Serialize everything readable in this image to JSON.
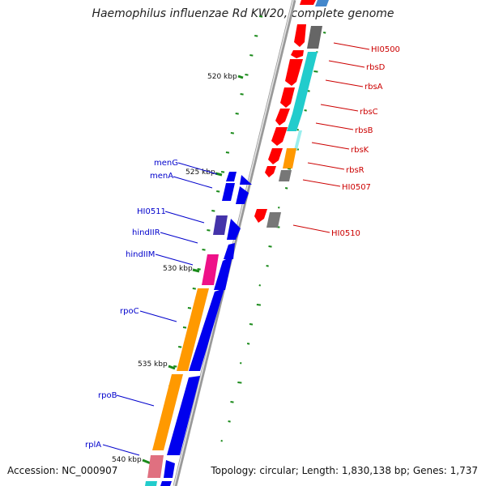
{
  "title": "Haemophilus influenzae Rd KW20, complete genome",
  "footer": {
    "accession": "Accession: NC_000907",
    "summary": "Topology: circular; Length: 1,830,138 bp; Genes: 1,737"
  },
  "ruler": {
    "ticks": [
      {
        "label": "520 kbp"
      },
      {
        "label": "525 kbp"
      },
      {
        "label": "530 kbp"
      },
      {
        "label": "535 kbp"
      },
      {
        "label": "540 kbp"
      }
    ]
  },
  "genes_right": [
    {
      "label": "HI0500"
    },
    {
      "label": "rbsD"
    },
    {
      "label": "rbsA"
    },
    {
      "label": "rbsC"
    },
    {
      "label": "rbsB"
    },
    {
      "label": "rbsK"
    },
    {
      "label": "rbsR"
    },
    {
      "label": "HI0507"
    },
    {
      "label": "HI0510"
    }
  ],
  "genes_left": [
    {
      "label": "menG"
    },
    {
      "label": "menA"
    },
    {
      "label": "HI0511"
    },
    {
      "label": "hindIIR"
    },
    {
      "label": "hindIIM"
    },
    {
      "label": "rpoC"
    },
    {
      "label": "rpoB"
    },
    {
      "label": "rplA"
    }
  ],
  "colors": {
    "forward_label": "#cc0000",
    "reverse_label": "#0000cc",
    "tick": "#1a8a1a",
    "backbone": "#888888",
    "red": "#ff0000",
    "cyan": "#22cccc",
    "orange": "#ff9900",
    "gray": "#777777",
    "blue": "#0000ee",
    "purple": "#4433aa",
    "magenta": "#ee1188",
    "pink": "#e07080"
  }
}
